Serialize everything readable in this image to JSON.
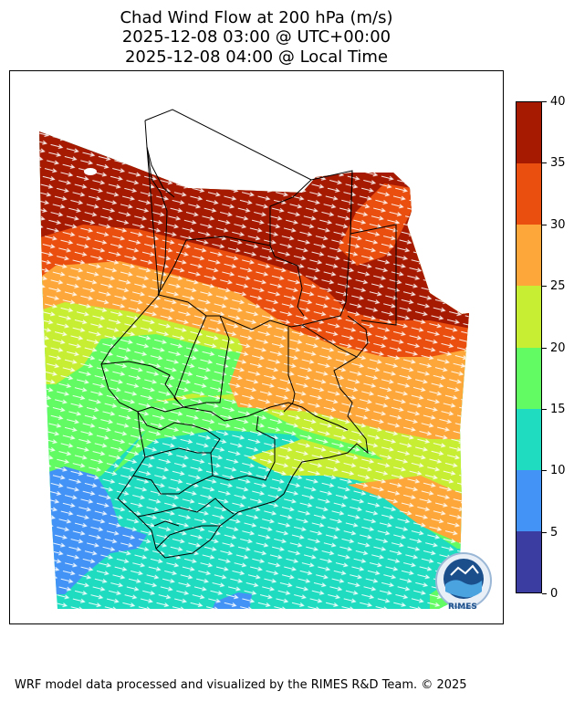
{
  "title": {
    "line1": "Chad Wind Flow at 200 hPa (m/s)",
    "line2": "2025-12-08 03:00 @ UTC+00:00",
    "line3": "2025-12-08 04:00 @ Local Time"
  },
  "colorbar": {
    "ticks": [
      "0",
      "5",
      "10",
      "15",
      "20",
      "25",
      "30",
      "35",
      "40"
    ],
    "bands": [
      {
        "range": "0-5",
        "color": "#3b3ea0"
      },
      {
        "range": "5-10",
        "color": "#4293f5"
      },
      {
        "range": "10-15",
        "color": "#1fdcc0"
      },
      {
        "range": "15-20",
        "color": "#63fb63"
      },
      {
        "range": "20-25",
        "color": "#c8ee33"
      },
      {
        "range": "25-30",
        "color": "#fda73a"
      },
      {
        "range": "30-35",
        "color": "#ea4f0f"
      },
      {
        "range": "35-40",
        "color": "#a71a02"
      }
    ]
  },
  "logo": {
    "text": "RIMES"
  },
  "footer": "WRF model data processed and visualized by the RIMES R&D Team. © 2025"
}
